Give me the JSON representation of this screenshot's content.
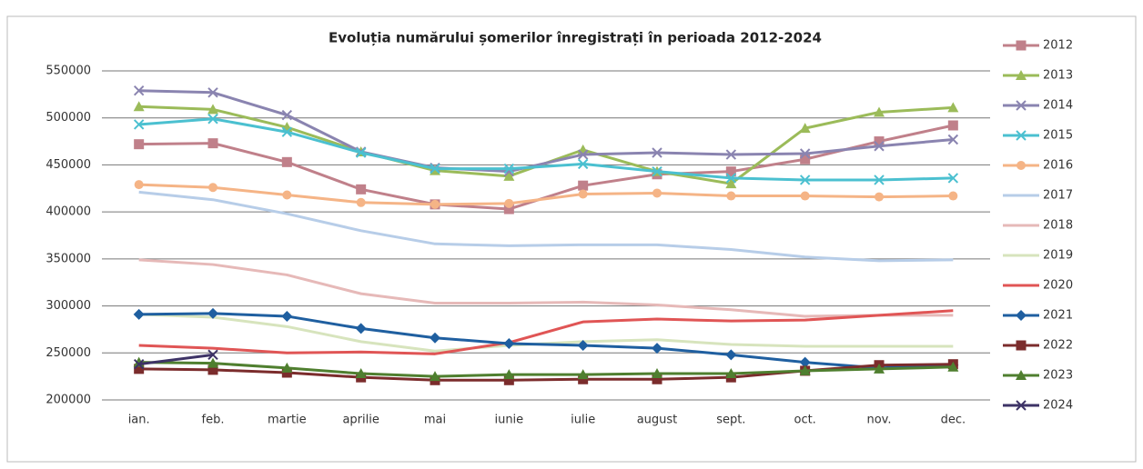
{
  "chart_data": {
    "type": "line",
    "title": "Evoluția numărului  șomerilor înregistrați în perioada 2012-2024",
    "categories": [
      "ian.",
      "feb.",
      "martie",
      "aprilie",
      "mai",
      "iunie",
      "iulie",
      "august",
      "sept.",
      "oct.",
      "nov.",
      "dec."
    ],
    "ylim": [
      200000,
      550000
    ],
    "yticks": [
      200000,
      250000,
      300000,
      350000,
      400000,
      450000,
      500000,
      550000
    ],
    "grid": true,
    "legend": "right",
    "series": [
      {
        "name": "2012",
        "color": "#c0808a",
        "marker": "square",
        "values": [
          472000,
          473000,
          453000,
          424000,
          408000,
          403000,
          428000,
          440000,
          443000,
          456000,
          475000,
          492000
        ]
      },
      {
        "name": "2013",
        "color": "#9bbb59",
        "marker": "triangle",
        "values": [
          512000,
          509000,
          490000,
          464000,
          444000,
          438000,
          466000,
          443000,
          430000,
          489000,
          506000,
          511000
        ]
      },
      {
        "name": "2014",
        "color": "#8a84b0",
        "marker": "x",
        "values": [
          529000,
          527000,
          503000,
          464000,
          447000,
          443000,
          461000,
          463000,
          461000,
          462000,
          470000,
          477000
        ]
      },
      {
        "name": "2015",
        "color": "#4bc0d0",
        "marker": "x",
        "values": [
          493000,
          499000,
          485000,
          463000,
          446000,
          446000,
          451000,
          443000,
          436000,
          434000,
          434000,
          436000
        ]
      },
      {
        "name": "2016",
        "color": "#f5b486",
        "marker": "circle",
        "values": [
          429000,
          426000,
          418000,
          410000,
          408000,
          409000,
          419000,
          420000,
          417000,
          417000,
          416000,
          417000
        ]
      },
      {
        "name": "2017",
        "color": "#b7cde8",
        "marker": "none",
        "values": [
          421000,
          413000,
          398000,
          380000,
          366000,
          364000,
          365000,
          365000,
          360000,
          352000,
          348000,
          349000
        ]
      },
      {
        "name": "2018",
        "color": "#e6b9b8",
        "marker": "none",
        "values": [
          349000,
          344000,
          333000,
          313000,
          303000,
          303000,
          304000,
          301000,
          296000,
          289000,
          290000,
          290000
        ]
      },
      {
        "name": "2019",
        "color": "#d7e4bd",
        "marker": "none",
        "values": [
          291000,
          288000,
          278000,
          262000,
          252000,
          258000,
          262000,
          264000,
          259000,
          257000,
          257000,
          257000
        ]
      },
      {
        "name": "2020",
        "color": "#e05555",
        "marker": "none",
        "values": [
          258000,
          255000,
          250000,
          251000,
          249000,
          261000,
          283000,
          286000,
          284000,
          285000,
          290000,
          295000
        ]
      },
      {
        "name": "2021",
        "color": "#1f5fa0",
        "marker": "diamond",
        "values": [
          291000,
          292000,
          289000,
          276000,
          266000,
          260000,
          258000,
          255000,
          248000,
          240000,
          234000,
          237000
        ]
      },
      {
        "name": "2022",
        "color": "#7b2c2c",
        "marker": "square",
        "values": [
          233000,
          232000,
          229000,
          224000,
          221000,
          221000,
          222000,
          222000,
          224000,
          231000,
          237000,
          238000
        ]
      },
      {
        "name": "2023",
        "color": "#4f7f2f",
        "marker": "triangle",
        "values": [
          240000,
          239000,
          234000,
          228000,
          225000,
          227000,
          227000,
          228000,
          228000,
          231000,
          233000,
          235000
        ]
      },
      {
        "name": "2024",
        "color": "#3d3366",
        "marker": "x",
        "values": [
          238000,
          248000,
          null,
          null,
          null,
          null,
          null,
          null,
          null,
          null,
          null,
          null
        ]
      }
    ]
  }
}
